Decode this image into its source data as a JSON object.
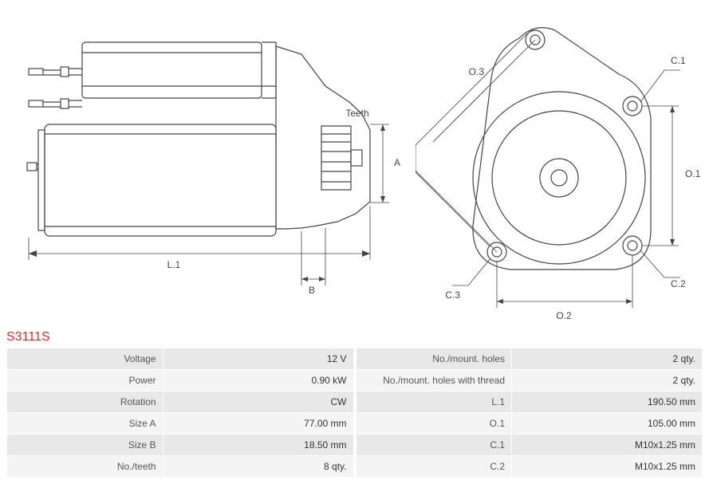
{
  "part_number": "S3111S",
  "diagram": {
    "stroke_color": "#444444",
    "stroke_width": 1.2,
    "dim_stroke_width": 0.8,
    "label_font_size": 12,
    "background": "#ffffff",
    "left_view": {
      "labels": {
        "teeth": "Teeth",
        "A": "A",
        "B": "B",
        "L1": "L.1"
      }
    },
    "right_view": {
      "labels": {
        "O1": "O.1",
        "O2": "O.2",
        "O3": "O.3",
        "C1": "C.1",
        "C2": "C.2",
        "C3": "C.3"
      }
    }
  },
  "specs_left": [
    {
      "label": "Voltage",
      "value": "12 V"
    },
    {
      "label": "Power",
      "value": "0.90 kW"
    },
    {
      "label": "Rotation",
      "value": "CW"
    },
    {
      "label": "Size A",
      "value": "77.00 mm"
    },
    {
      "label": "Size B",
      "value": "18.50 mm"
    },
    {
      "label": "No./teeth",
      "value": "8 qty."
    }
  ],
  "specs_right": [
    {
      "label": "No./mount. holes",
      "value": "2 qty."
    },
    {
      "label": "No./mount. holes with thread",
      "value": "2 qty."
    },
    {
      "label": "L.1",
      "value": "190.50 mm"
    },
    {
      "label": "O.1",
      "value": "105.00 mm"
    },
    {
      "label": "C.1",
      "value": "M10x1.25 mm"
    },
    {
      "label": "C.2",
      "value": "M10x1.25 mm"
    }
  ]
}
